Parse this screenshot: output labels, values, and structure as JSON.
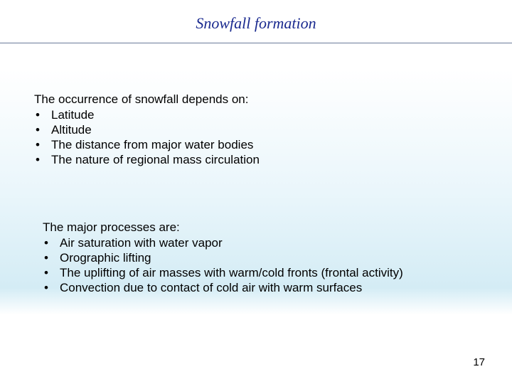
{
  "title": {
    "text": "Snowfall formation",
    "color": "#1a2a8f",
    "fontsize": 22
  },
  "divider_color": "#6a7a9a",
  "body": {
    "color": "#000000",
    "fontsize": 17
  },
  "section1": {
    "intro": "The occurrence of snowfall depends on:",
    "items": [
      "Latitude",
      "Altitude",
      "The distance from major water bodies",
      "The nature of regional mass circulation"
    ]
  },
  "section2": {
    "intro": "The major processes are:",
    "items": [
      "Air saturation with water vapor",
      "Orographic lifting",
      "The uplifting of air masses with warm/cold fronts (frontal activity)",
      "Convection due to contact of cold air with warm surfaces"
    ]
  },
  "page_number": "17",
  "page_number_fontsize": 15
}
